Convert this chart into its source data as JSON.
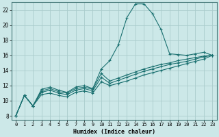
{
  "xlabel": "Humidex (Indice chaleur)",
  "background_color": "#cce8e8",
  "grid_color": "#aacccc",
  "line_color": "#1a7070",
  "xlim": [
    -0.5,
    23.5
  ],
  "ylim": [
    7.5,
    23.0
  ],
  "yticks": [
    8,
    10,
    12,
    14,
    16,
    18,
    20,
    22
  ],
  "xticks": [
    0,
    1,
    2,
    3,
    4,
    5,
    6,
    7,
    8,
    9,
    10,
    11,
    12,
    13,
    14,
    15,
    16,
    17,
    18,
    19,
    20,
    21,
    22,
    23
  ],
  "lines": [
    {
      "x": [
        0,
        1,
        2,
        3,
        4,
        5,
        6,
        7,
        8,
        9,
        10,
        11,
        12,
        13,
        14,
        15,
        16,
        17,
        18,
        19,
        20,
        21,
        22,
        23
      ],
      "y": [
        8.0,
        10.7,
        9.3,
        11.5,
        11.8,
        11.4,
        11.1,
        11.8,
        12.0,
        11.6,
        14.2,
        15.3,
        17.4,
        21.0,
        22.8,
        22.8,
        21.5,
        19.4,
        16.2,
        16.1,
        16.0,
        16.2,
        16.4,
        16.0
      ],
      "markers": true
    },
    {
      "x": [
        0,
        1,
        2,
        3,
        4,
        5,
        6,
        7,
        8,
        9,
        10,
        11,
        12,
        13,
        14,
        15,
        16,
        17,
        18,
        19,
        20,
        21,
        22,
        23
      ],
      "y": [
        8.0,
        10.7,
        9.3,
        10.8,
        11.0,
        10.7,
        10.5,
        11.1,
        11.3,
        11.0,
        12.5,
        12.0,
        12.3,
        12.6,
        13.0,
        13.4,
        13.7,
        14.0,
        14.3,
        14.6,
        14.9,
        15.2,
        15.5,
        16.0
      ],
      "markers": true
    },
    {
      "x": [
        0,
        1,
        2,
        3,
        4,
        5,
        6,
        7,
        8,
        9,
        10,
        11,
        12,
        13,
        14,
        15,
        16,
        17,
        18,
        19,
        20,
        21,
        22,
        23
      ],
      "y": [
        8.0,
        10.7,
        9.3,
        11.1,
        11.4,
        11.0,
        10.8,
        11.4,
        11.6,
        11.3,
        13.1,
        12.3,
        12.7,
        13.1,
        13.5,
        13.9,
        14.2,
        14.5,
        14.8,
        15.0,
        15.2,
        15.5,
        15.8,
        16.0
      ],
      "markers": true
    },
    {
      "x": [
        0,
        1,
        2,
        3,
        4,
        5,
        6,
        7,
        8,
        9,
        10,
        11,
        12,
        13,
        14,
        15,
        16,
        17,
        18,
        19,
        20,
        21,
        22,
        23
      ],
      "y": [
        8.0,
        10.7,
        9.3,
        11.3,
        11.6,
        11.2,
        11.0,
        11.6,
        11.8,
        11.5,
        13.6,
        12.6,
        13.0,
        13.4,
        13.8,
        14.2,
        14.5,
        14.8,
        15.0,
        15.3,
        15.5,
        15.7,
        15.9,
        16.0
      ],
      "markers": true
    }
  ]
}
